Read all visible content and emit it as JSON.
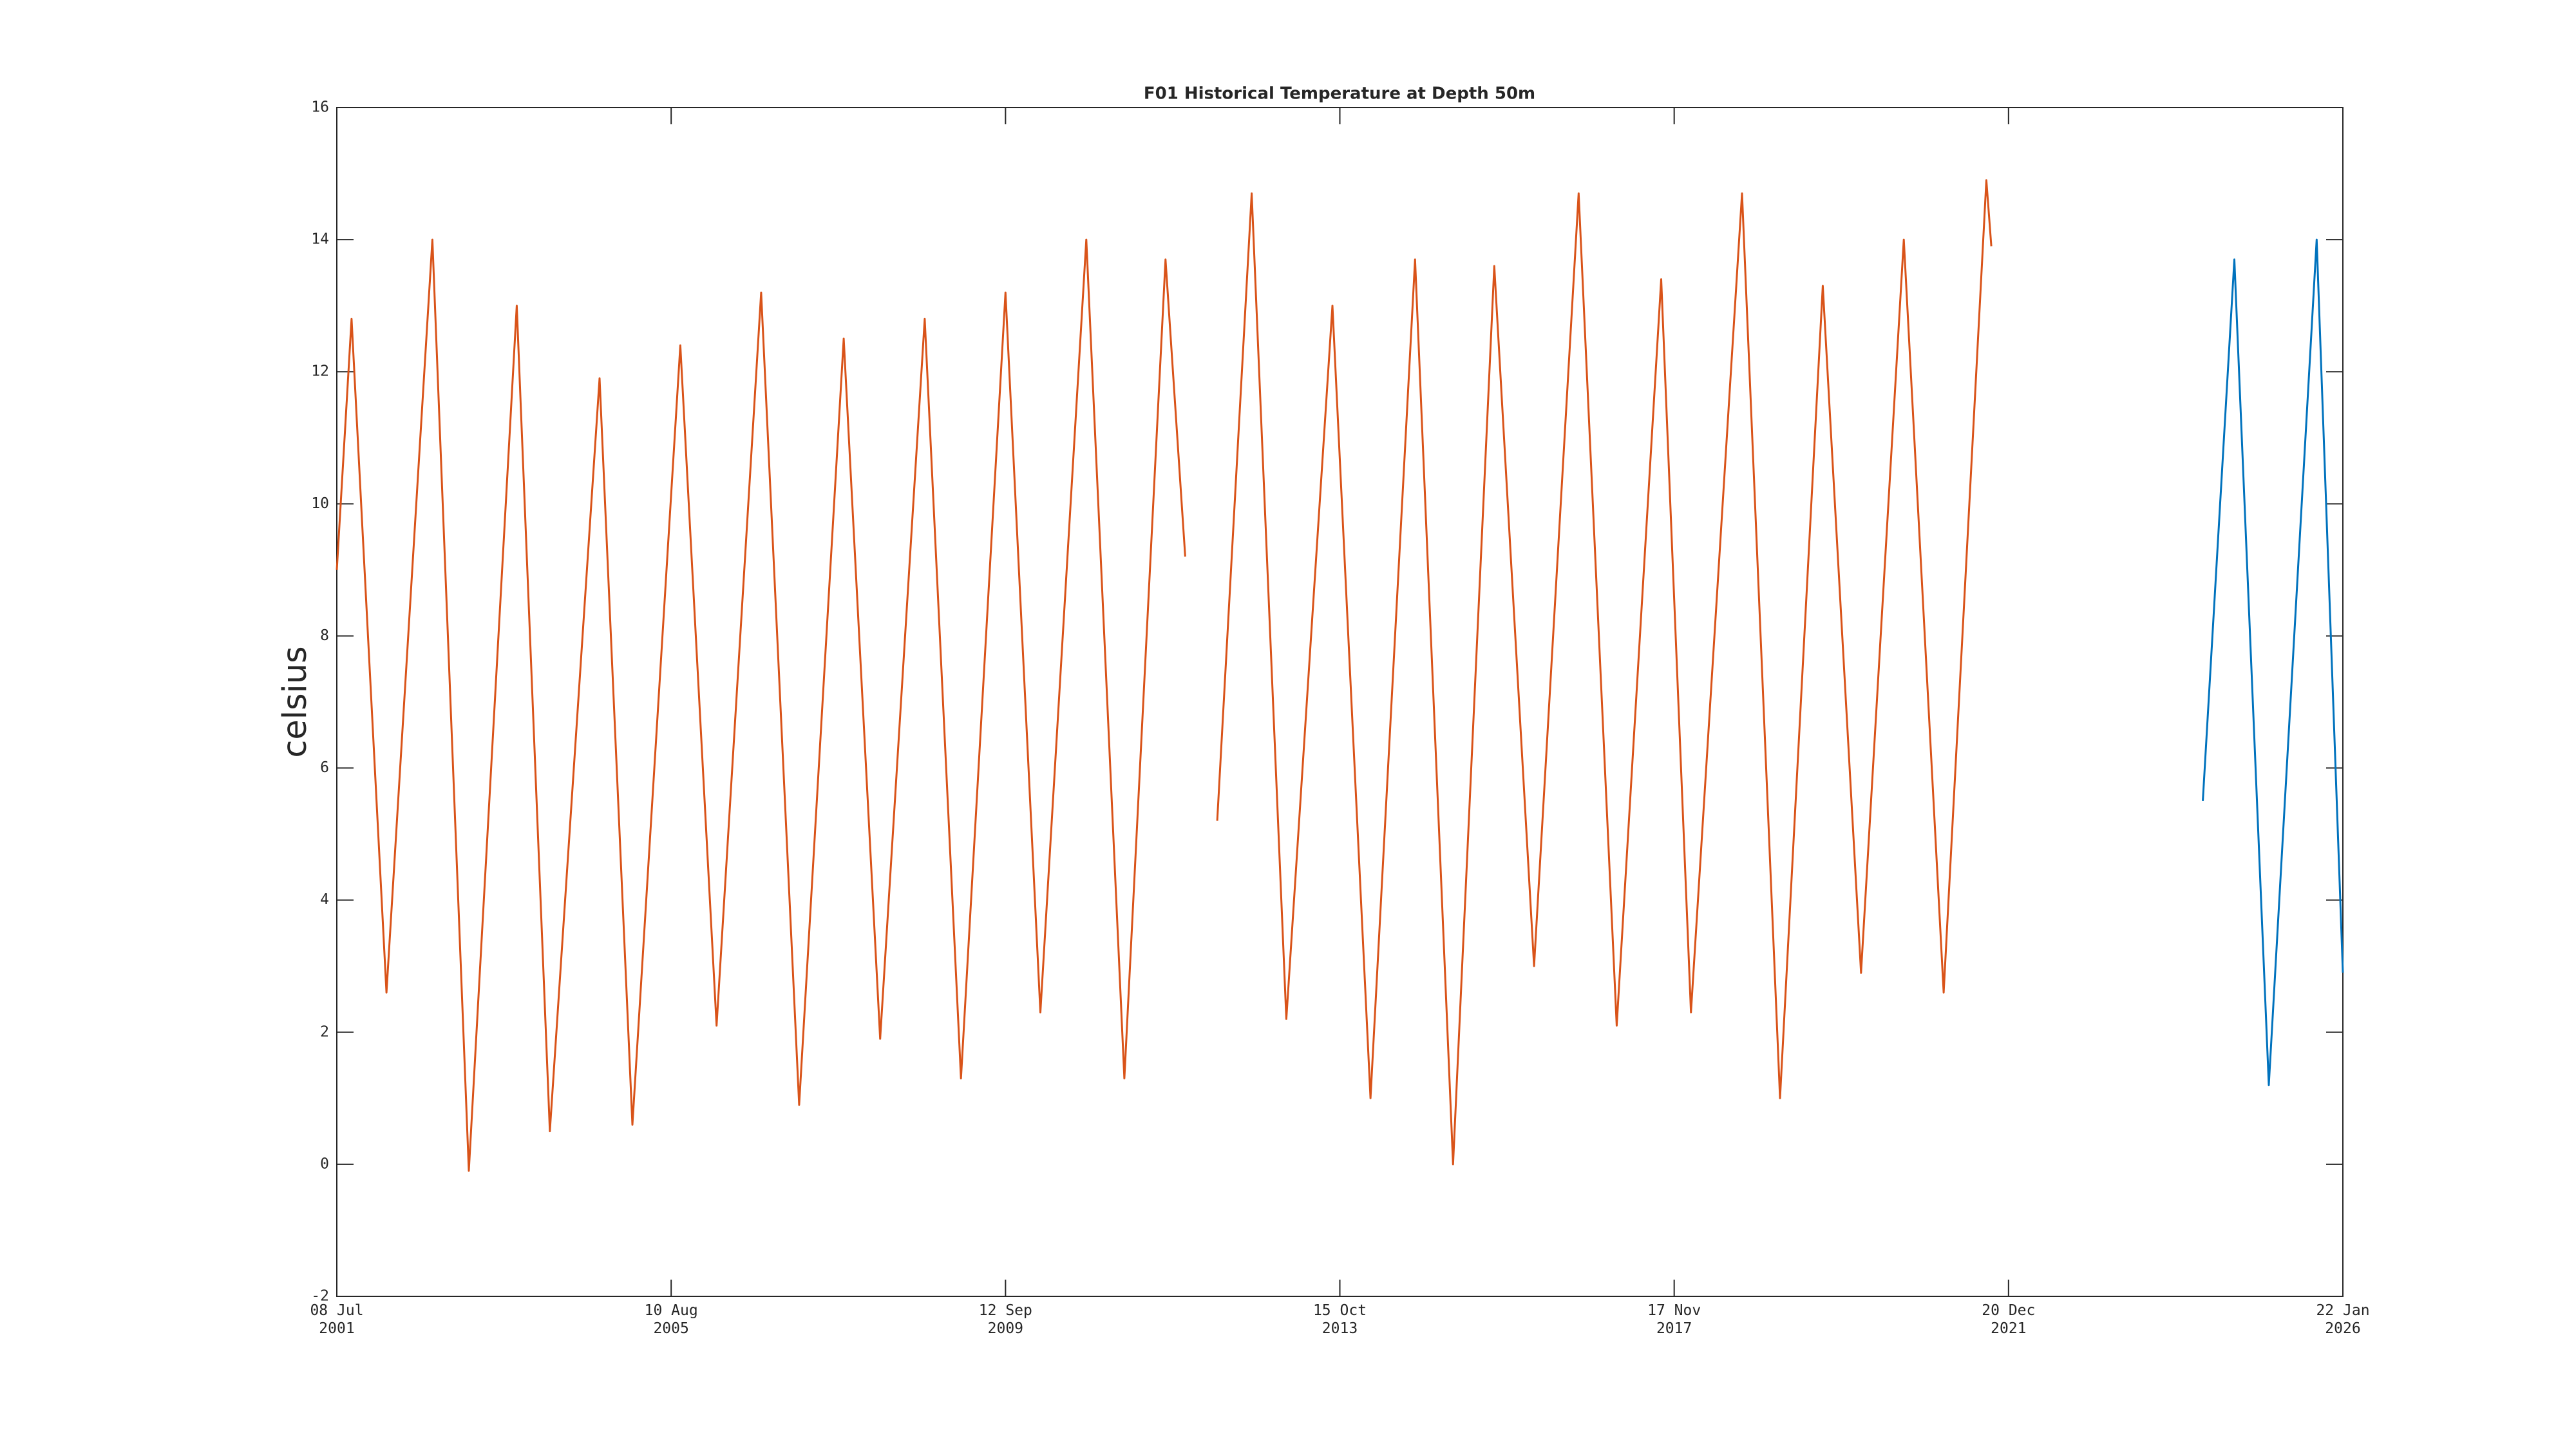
{
  "chart_data": {
    "type": "line",
    "title": "F01 Historical Temperature at Depth 50m",
    "y_label": "celsius",
    "xlim": [
      "2001-07-08",
      "2026-01-22"
    ],
    "xticks": [
      {
        "value": "2001-07-08",
        "label": "08 Jul\n2001"
      },
      {
        "value": "2005-08-10",
        "label": "10 Aug\n2005"
      },
      {
        "value": "2009-09-12",
        "label": "12 Sep\n2009"
      },
      {
        "value": "2013-10-15",
        "label": "15 Oct\n2013"
      },
      {
        "value": "2017-11-17",
        "label": "17 Nov\n2017"
      },
      {
        "value": "2021-12-20",
        "label": "20 Dec\n2021"
      },
      {
        "value": "2026-01-22",
        "label": "22 Jan\n2026"
      }
    ],
    "ylim": [
      -2,
      16
    ],
    "yticks": [
      -2,
      0,
      2,
      4,
      6,
      8,
      10,
      12,
      14,
      16
    ],
    "grid": false,
    "series": [
      {
        "color": "#d95319",
        "x": [
          "2001-07-08",
          "2001-09-12",
          "2002-02-15",
          "2002-09-08",
          "2003-02-18",
          "2003-09-20",
          "2004-02-15",
          "2004-09-24",
          "2005-02-18",
          "2005-09-20",
          "2006-03-01",
          "2006-09-16",
          "2007-03-05",
          "2007-09-20",
          "2008-03-01",
          "2008-09-16",
          "2009-02-25",
          "2009-09-12",
          "2010-02-15",
          "2010-09-08",
          "2011-02-25",
          "2011-08-28",
          "2011-11-24",
          "2012-01-15",
          "2012-04-15",
          "2012-09-16",
          "2013-02-18",
          "2013-09-12",
          "2014-03-01",
          "2014-09-16",
          "2015-03-05",
          "2015-09-05",
          "2016-03-01",
          "2016-09-16",
          "2017-03-05",
          "2017-09-20",
          "2018-01-31",
          "2018-09-16",
          "2019-03-05",
          "2019-09-12",
          "2020-03-01",
          "2020-09-08",
          "2021-03-05",
          "2021-09-12",
          "2021-10-04"
        ],
        "values": [
          9,
          12.8,
          2.6,
          14.0,
          -0.1,
          13.0,
          0.5,
          11.9,
          0.6,
          12.4,
          2.1,
          13.2,
          0.9,
          12.5,
          1.9,
          12.8,
          1.3,
          13.2,
          2.3,
          14.0,
          1.3,
          13.7,
          9.2,
          null,
          5.2,
          14.7,
          2.2,
          13.0,
          1.0,
          13.7,
          0.0,
          13.6,
          3.0,
          14.7,
          2.1,
          13.4,
          2.3,
          14.7,
          1.0,
          13.3,
          2.9,
          14.0,
          2.6,
          14.9,
          13.9
        ]
      },
      {
        "color": "#0072bd",
        "x": [
          "2024-05-06",
          "2024-09-24",
          "2025-02-25",
          "2025-09-27",
          "2026-01-22"
        ],
        "values": [
          5.5,
          13.7,
          1.2,
          14.0,
          2.9
        ]
      }
    ]
  }
}
